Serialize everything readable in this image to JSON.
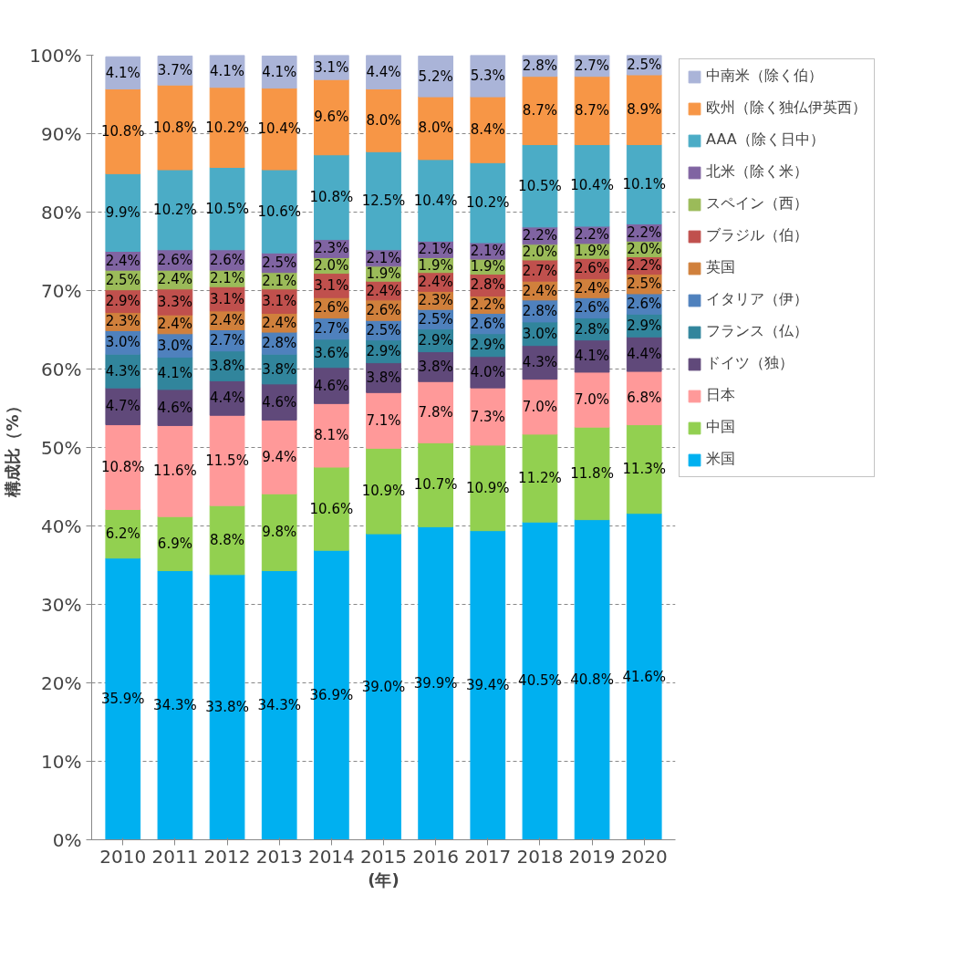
{
  "chart_data": {
    "type": "bar",
    "stacked": true,
    "ylabel": "構成比（%）",
    "xlabel": "(年)",
    "categories": [
      "2010",
      "2011",
      "2012",
      "2013",
      "2014",
      "2015",
      "2016",
      "2017",
      "2018",
      "2019",
      "2020"
    ],
    "ylim": [
      0,
      100
    ],
    "yticks": [
      {
        "value": 0,
        "label": "0%"
      },
      {
        "value": 10,
        "label": "10%"
      },
      {
        "value": 20,
        "label": "20%"
      },
      {
        "value": 30,
        "label": "30%"
      },
      {
        "value": 40,
        "label": "40%"
      },
      {
        "value": 50,
        "label": "50%"
      },
      {
        "value": 60,
        "label": "60%"
      },
      {
        "value": 70,
        "label": "70%"
      },
      {
        "value": 80,
        "label": "80%"
      },
      {
        "value": 90,
        "label": "90%"
      },
      {
        "value": 100,
        "label": "100%"
      }
    ],
    "grid": "y",
    "legend": "right",
    "series": [
      {
        "name": "米国",
        "color": "#00b0f0",
        "values": [
          35.9,
          34.3,
          33.8,
          34.3,
          36.9,
          39.0,
          39.9,
          39.4,
          40.5,
          40.8,
          41.6
        ],
        "value_labels": [
          "35.9%",
          "34.3%",
          "33.8%",
          "34.3%",
          "36.9%",
          "39.0%",
          "39.9%",
          "39.4%",
          "40.5%",
          "40.8%",
          "41.6%"
        ]
      },
      {
        "name": "中国",
        "color": "#92d050",
        "values": [
          6.2,
          6.9,
          8.8,
          9.8,
          10.6,
          10.9,
          10.7,
          10.9,
          11.2,
          11.8,
          11.3
        ],
        "value_labels": [
          "6.2%",
          "6.9%",
          "8.8%",
          "9.8%",
          "10.6%",
          "10.9%",
          "10.7%",
          "10.9%",
          "11.2%",
          "11.8%",
          "11.3%"
        ]
      },
      {
        "name": "日本",
        "color": "#ff9999",
        "values": [
          10.8,
          11.6,
          11.5,
          9.4,
          8.1,
          7.1,
          7.8,
          7.3,
          7.0,
          7.0,
          6.8
        ],
        "value_labels": [
          "10.8%",
          "11.6%",
          "11.5%",
          "9.4%",
          "8.1%",
          "7.1%",
          "7.8%",
          "7.3%",
          "7.0%",
          "7.0%",
          "6.8%"
        ]
      },
      {
        "name": "ドイツ（独）",
        "color": "#60497a",
        "values": [
          4.7,
          4.6,
          4.4,
          4.6,
          4.6,
          3.8,
          3.8,
          4.0,
          4.3,
          4.1,
          4.4
        ],
        "value_labels": [
          "4.7%",
          "4.6%",
          "4.4%",
          "4.6%",
          "4.6%",
          "3.8%",
          "3.8%",
          "4.0%",
          "4.3%",
          "4.1%",
          "4.4%"
        ]
      },
      {
        "name": "フランス（仏）",
        "color": "#31859c",
        "values": [
          4.3,
          4.1,
          3.8,
          3.8,
          3.6,
          2.9,
          2.9,
          2.9,
          3.0,
          2.8,
          2.9
        ],
        "value_labels": [
          "4.3%",
          "4.1%",
          "3.8%",
          "3.8%",
          "3.6%",
          "2.9%",
          "2.9%",
          "2.9%",
          "3.0%",
          "2.8%",
          "2.9%"
        ]
      },
      {
        "name": "イタリア（伊）",
        "color": "#4f81bd",
        "values": [
          3.0,
          3.0,
          2.7,
          2.8,
          2.7,
          2.5,
          2.5,
          2.6,
          2.8,
          2.6,
          2.6
        ],
        "value_labels": [
          "3.0%",
          "3.0%",
          "2.7%",
          "2.8%",
          "2.7%",
          "2.5%",
          "2.5%",
          "2.6%",
          "2.8%",
          "2.6%",
          "2.6%"
        ]
      },
      {
        "name": "英国",
        "color": "#d0803c",
        "values": [
          2.3,
          2.4,
          2.4,
          2.4,
          2.6,
          2.6,
          2.3,
          2.2,
          2.4,
          2.4,
          2.5
        ],
        "value_labels": [
          "2.3%",
          "2.4%",
          "2.4%",
          "2.4%",
          "2.6%",
          "2.6%",
          "2.3%",
          "2.2%",
          "2.4%",
          "2.4%",
          "2.5%"
        ]
      },
      {
        "name": "ブラジル（伯）",
        "color": "#c0504d",
        "values": [
          2.9,
          3.3,
          3.1,
          3.1,
          3.1,
          2.4,
          2.4,
          2.8,
          2.7,
          2.6,
          2.2
        ],
        "value_labels": [
          "2.9%",
          "3.3%",
          "3.1%",
          "3.1%",
          "3.1%",
          "2.4%",
          "2.4%",
          "2.8%",
          "2.7%",
          "2.6%",
          "2.2%"
        ]
      },
      {
        "name": "スペイン（西）",
        "color": "#9bbb59",
        "values": [
          2.5,
          2.4,
          2.1,
          2.1,
          2.0,
          1.9,
          1.9,
          1.9,
          2.0,
          1.9,
          2.0
        ],
        "value_labels": [
          "2.5%",
          "2.4%",
          "2.1%",
          "2.1%",
          "2.0%",
          "1.9%",
          "1.9%",
          "1.9%",
          "2.0%",
          "1.9%",
          "2.0%"
        ]
      },
      {
        "name": "北米（除く米）",
        "color": "#8064a2",
        "values": [
          2.4,
          2.6,
          2.6,
          2.5,
          2.3,
          2.1,
          2.1,
          2.1,
          2.2,
          2.2,
          2.2
        ],
        "value_labels": [
          "2.4%",
          "2.6%",
          "2.6%",
          "2.5%",
          "2.3%",
          "2.1%",
          "2.1%",
          "2.1%",
          "2.2%",
          "2.2%",
          "2.2%"
        ]
      },
      {
        "name": "AAA（除く日中）",
        "color": "#4bacc6",
        "values": [
          9.9,
          10.2,
          10.5,
          10.6,
          10.8,
          12.5,
          10.4,
          10.2,
          10.5,
          10.4,
          10.1
        ],
        "value_labels": [
          "9.9%",
          "10.2%",
          "10.5%",
          "10.6%",
          "10.8%",
          "12.5%",
          "10.4%",
          "10.2%",
          "10.5%",
          "10.4%",
          "10.1%"
        ]
      },
      {
        "name": "欧州（除く独仏伊英西）",
        "color": "#f79646",
        "values": [
          10.8,
          10.8,
          10.2,
          10.4,
          9.6,
          8.0,
          8.0,
          8.4,
          8.7,
          8.7,
          8.9
        ],
        "value_labels": [
          "10.8%",
          "10.8%",
          "10.2%",
          "10.4%",
          "9.6%",
          "8.0%",
          "8.0%",
          "8.4%",
          "8.7%",
          "8.7%",
          "8.9%"
        ]
      },
      {
        "name": "中南米（除く伯）",
        "color": "#aab4d8",
        "values": [
          4.1,
          3.7,
          4.1,
          4.1,
          3.1,
          4.4,
          5.2,
          5.3,
          2.8,
          2.7,
          2.5
        ],
        "value_labels": [
          "4.1%",
          "3.7%",
          "4.1%",
          "4.1%",
          "3.1%",
          "4.4%",
          "5.2%",
          "5.3%",
          "2.8%",
          "2.7%",
          "2.5%"
        ]
      }
    ]
  }
}
